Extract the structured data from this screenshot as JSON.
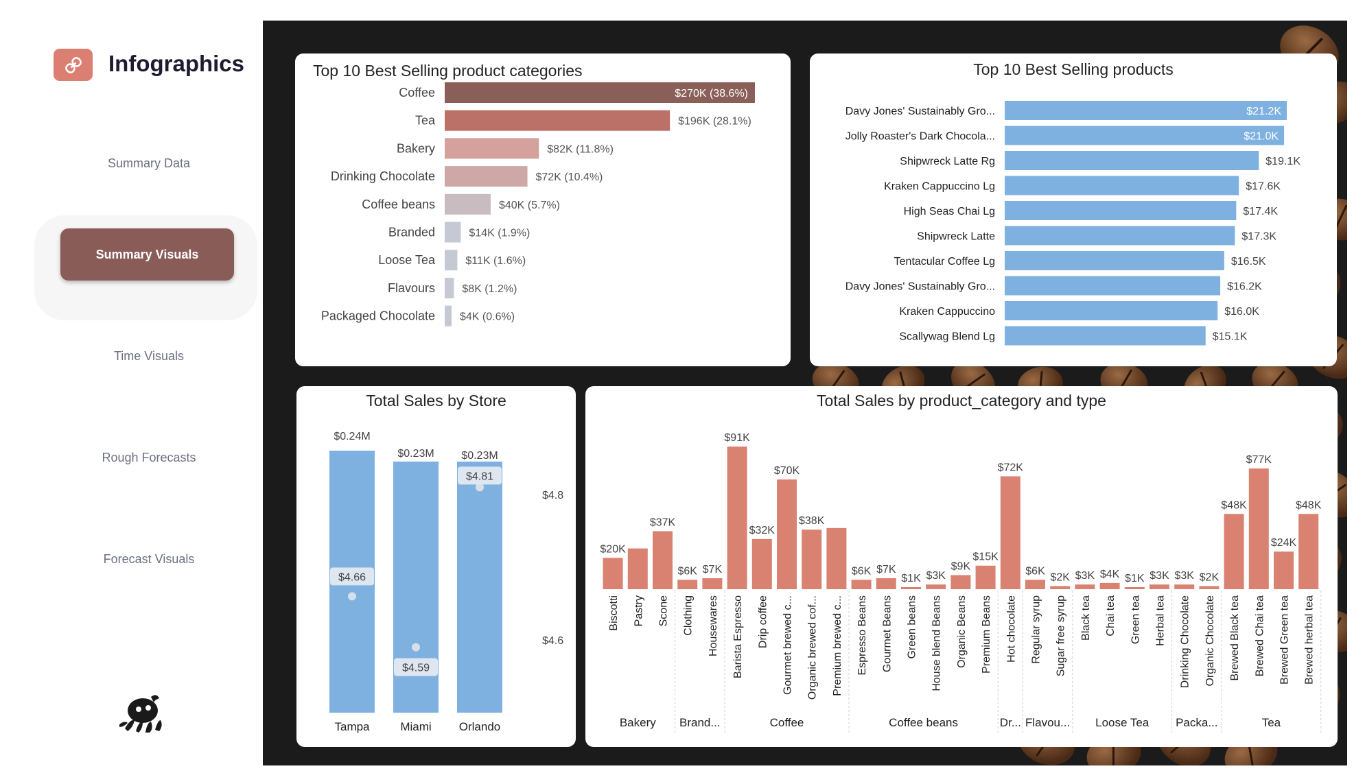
{
  "sidebar": {
    "title": "Infographics",
    "nav": [
      "Summary Data",
      "Summary Visuals",
      "Time Visuals",
      "Rough Forecasts",
      "Forecast Visuals"
    ],
    "active": "Summary Visuals"
  },
  "colors": {
    "accent": "#dc7f73",
    "active_nav": "#8a5c57",
    "bar_blue": "#7eb1e0",
    "bar_salmon": "#d98272"
  },
  "categories_chart": {
    "title": "Top 10 Best Selling product categories",
    "chart_data": {
      "type": "bar",
      "orientation": "horizontal",
      "categories": [
        "Coffee",
        "Tea",
        "Bakery",
        "Drinking Chocolate",
        "Coffee beans",
        "Branded",
        "Loose Tea",
        "Flavours",
        "Packaged Chocolate"
      ],
      "values": [
        270,
        196,
        82,
        72,
        40,
        14,
        11,
        8,
        4
      ],
      "labels": [
        "$270K (38.6%)",
        "$196K (28.1%)",
        "$82K (11.8%)",
        "$72K (10.4%)",
        "$40K (5.7%)",
        "$14K (1.9%)",
        "$11K (1.6%)",
        "$8K (1.2%)",
        "$4K (0.6%)"
      ],
      "colors": [
        "#8a5f58",
        "#bc7168",
        "#d4a19c",
        "#cda8a6",
        "#c9bcc1",
        "#c5c9d4",
        "#c5c9d4",
        "#c5c9d4",
        "#c5c9d4"
      ]
    }
  },
  "products_chart": {
    "title": "Top 10 Best Selling products",
    "chart_data": {
      "type": "bar",
      "orientation": "horizontal",
      "categories": [
        "Davy Jones' Sustainably Gro...",
        "Jolly Roaster's Dark Chocola...",
        "Shipwreck Latte Rg",
        "Kraken Cappuccino Lg",
        "High Seas Chai Lg",
        "Shipwreck Latte",
        "Tentacular Coffee Lg",
        "Davy Jones' Sustainably Gro...",
        "Kraken Cappuccino",
        "Scallywag Blend Lg"
      ],
      "values": [
        21.2,
        21.0,
        19.1,
        17.6,
        17.4,
        17.3,
        16.5,
        16.2,
        16.0,
        15.1
      ],
      "labels": [
        "$21.2K",
        "$21.0K",
        "$19.1K",
        "$17.6K",
        "$17.4K",
        "$17.3K",
        "$16.5K",
        "$16.2K",
        "$16.0K",
        "$15.1K"
      ],
      "inside_label_count": 2
    }
  },
  "store_chart": {
    "title": "Total Sales by Store",
    "chart_data": {
      "type": "bar",
      "categories": [
        "Tampa",
        "Miami",
        "Orlando"
      ],
      "values": [
        0.24,
        0.23,
        0.23
      ],
      "value_labels": [
        "$0.24M",
        "$0.23M",
        "$0.23M"
      ],
      "secondary_series": {
        "values": [
          4.66,
          4.59,
          4.81
        ],
        "labels": [
          "$4.66",
          "$4.59",
          "$4.81"
        ],
        "axis_ticks": [
          "$4.8",
          "$4.6"
        ],
        "axis_tick_values": [
          4.8,
          4.6
        ]
      }
    }
  },
  "type_chart": {
    "title": "Total Sales by product_category and type",
    "chart_data": {
      "type": "bar",
      "categories": [
        "Biscotti",
        "Pastry",
        "Scone",
        "Clothing",
        "Housewares",
        "Barista Espresso",
        "Drip coffee",
        "Gourmet brewed c...",
        "Organic brewed cof...",
        "Premium brewed c...",
        "Espresso Beans",
        "Gourmet Beans",
        "Green beans",
        "House blend Beans",
        "Organic Beans",
        "Premium Beans",
        "Hot chocolate",
        "Regular syrup",
        "Sugar free syrup",
        "Black tea",
        "Chai tea",
        "Green tea",
        "Herbal tea",
        "Drinking Chocolate",
        "Organic Chocolate",
        "Brewed Black tea",
        "Brewed Chai tea",
        "Brewed Green tea",
        "Brewed herbal tea"
      ],
      "values": [
        20,
        26,
        37,
        6,
        7,
        91,
        32,
        70,
        38,
        39,
        6,
        7,
        1,
        3,
        9,
        15,
        72,
        6,
        2,
        3,
        4,
        1,
        3,
        3,
        2,
        48,
        77,
        24,
        48
      ],
      "labels": [
        "$20K",
        "",
        "$37K",
        "$6K",
        "$7K",
        "$91K",
        "$32K",
        "$70K",
        "$38K",
        "",
        "$6K",
        "$7K",
        "$1K",
        "$3K",
        "$9K",
        "$15K",
        "$72K",
        "$6K",
        "$2K",
        "$3K",
        "$4K",
        "$1K",
        "$3K",
        "$3K",
        "$2K",
        "$48K",
        "$77K",
        "$24K",
        "$48K"
      ],
      "groups": [
        {
          "name": "Bakery",
          "start": 0,
          "count": 3
        },
        {
          "name": "Brand...",
          "start": 3,
          "count": 2
        },
        {
          "name": "Coffee",
          "start": 5,
          "count": 5
        },
        {
          "name": "Coffee beans",
          "start": 10,
          "count": 6
        },
        {
          "name": "Dr...",
          "start": 16,
          "count": 1
        },
        {
          "name": "Flavou...",
          "start": 17,
          "count": 2
        },
        {
          "name": "Loose Tea",
          "start": 19,
          "count": 4
        },
        {
          "name": "Packa...",
          "start": 23,
          "count": 2
        },
        {
          "name": "Tea",
          "start": 25,
          "count": 4
        }
      ]
    }
  }
}
